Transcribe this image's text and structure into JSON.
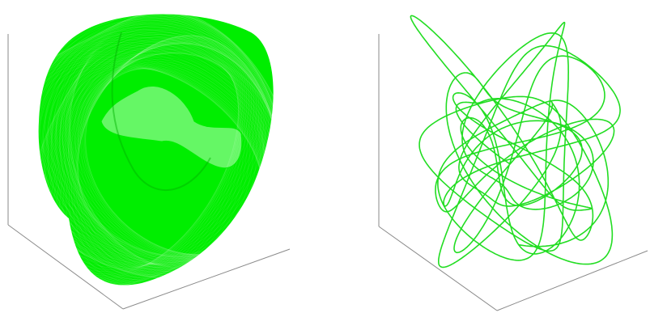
{
  "figure": {
    "panels": [
      {
        "id": "dense-torus-attractor",
        "description_kind": "quasi-periodic 3D trajectory (dense winding)",
        "curve_color": "#00ee00",
        "curve_style": "dense"
      },
      {
        "id": "sparse-chaotic-trajectory",
        "description_kind": "3D trajectory (sparse loops)",
        "curve_color": "#22dd22",
        "curve_style": "sparse"
      }
    ],
    "axes_color": "#8a8a8a",
    "background": "#ffffff"
  }
}
